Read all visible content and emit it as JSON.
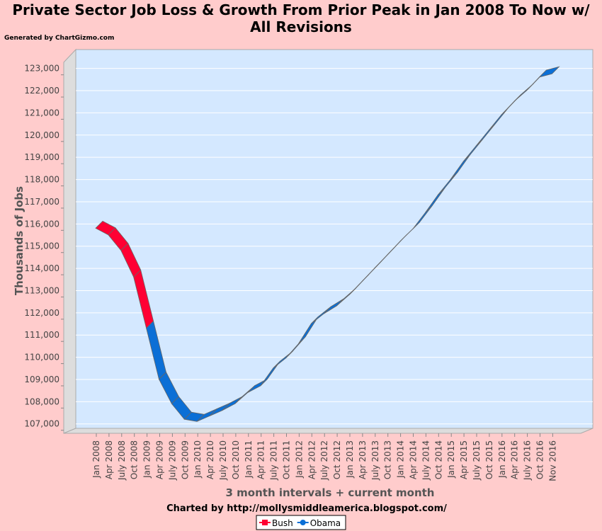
{
  "chart_data": {
    "type": "ribbon-line",
    "title": "Private Sector Job Loss & Growth From Prior Peak in Jan 2008 To Now w/ All Revisions",
    "credit": "Generated by ChartGizmo.com",
    "y_label": "Thousands of Jobs",
    "x_label": "3 month intervals + current month",
    "footer": "Charted by http://mollysmiddleamerica.blogspot.com/",
    "categories": [
      "Jan 2008",
      "Apr 2008",
      "July 2008",
      "Oct 2008",
      "Jan 2009",
      "Apr 2009",
      "July 2009",
      "Oct 2009",
      "Jan 2010",
      "Apr 2010",
      "July 2010",
      "Oct 2010",
      "Jan 2011",
      "Apr 2011",
      "July 2011",
      "Oct 2011",
      "Jan 2012",
      "Apr 2012",
      "July 2012",
      "Oct 2012",
      "Jan 2013",
      "Apr 2013",
      "July 2013",
      "Oct 2013",
      "Jan 2014",
      "Apr 2014",
      "July 2014",
      "Oct 2014",
      "Jan 2015",
      "Apr 2015",
      "July 2015",
      "Oct 2015",
      "Jan 2016",
      "Apr 2016",
      "July 2016",
      "Oct 2016",
      "Nov 2016"
    ],
    "series": [
      {
        "name": "Bush",
        "color": "#ff0033",
        "values": [
          116000,
          115700,
          115000,
          113800,
          111500,
          null,
          null,
          null,
          null,
          null,
          null,
          null,
          null,
          null,
          null,
          null,
          null,
          null,
          null,
          null,
          null,
          null,
          null,
          null,
          null,
          null,
          null,
          null,
          null,
          null,
          null,
          null,
          null,
          null,
          null,
          null,
          null
        ]
      },
      {
        "name": "Obama",
        "color": "#0b6fd6",
        "values": [
          null,
          null,
          null,
          null,
          111500,
          109200,
          108100,
          107400,
          107300,
          107550,
          107800,
          108100,
          108600,
          108900,
          109700,
          110150,
          110800,
          111700,
          112150,
          112500,
          113000,
          113600,
          114200,
          114800,
          115400,
          115950,
          116700,
          117500,
          118200,
          119000,
          119700,
          120400,
          121100,
          121700,
          122200,
          122800,
          122950
        ]
      }
    ],
    "ylim": [
      106800,
      123850
    ],
    "yticks": [
      {
        "value": 107000,
        "label": "107,000"
      },
      {
        "value": 108000,
        "label": "108,000"
      },
      {
        "value": 109000,
        "label": "109,000"
      },
      {
        "value": 110000,
        "label": "110,000"
      },
      {
        "value": 111000,
        "label": "111,000"
      },
      {
        "value": 112000,
        "label": "112,000"
      },
      {
        "value": 113000,
        "label": "113,000"
      },
      {
        "value": 114000,
        "label": "114,000"
      },
      {
        "value": 115000,
        "label": "115,000"
      },
      {
        "value": 116000,
        "label": "116,000"
      },
      {
        "value": 117000,
        "label": "117,000"
      },
      {
        "value": 118000,
        "label": "118,000"
      },
      {
        "value": 119000,
        "label": "119,000"
      },
      {
        "value": 120000,
        "label": "120,000"
      },
      {
        "value": 121000,
        "label": "121,000"
      },
      {
        "value": 122000,
        "label": "122,000"
      },
      {
        "value": 123000,
        "label": "123,000"
      }
    ],
    "grid": true
  }
}
